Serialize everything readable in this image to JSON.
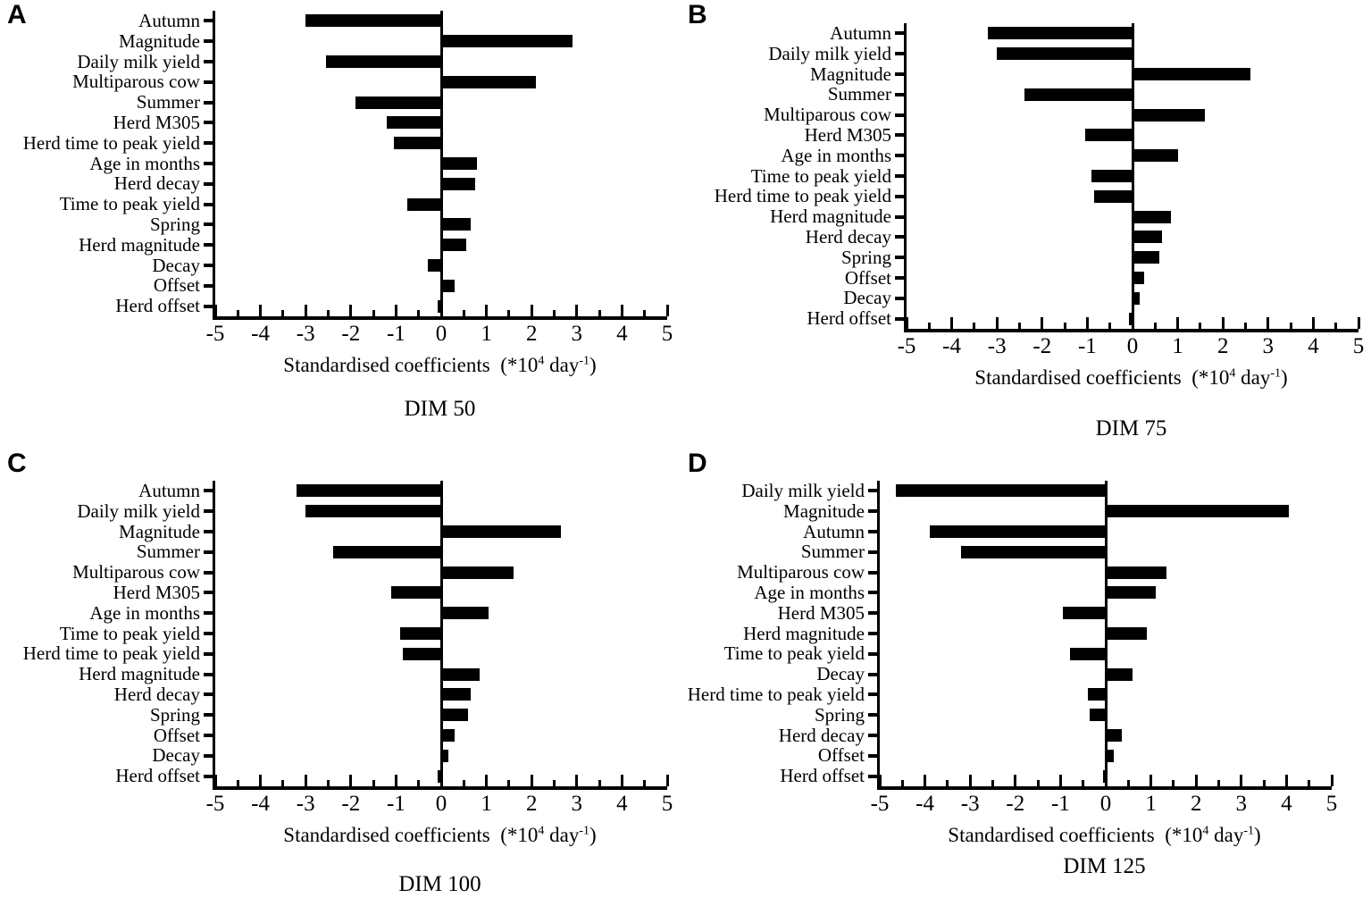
{
  "colors": {
    "bar": "#000000",
    "axis": "#000000",
    "background": "#ffffff"
  },
  "chart_data": [
    {
      "type": "bar",
      "orientation": "horizontal",
      "panel": "A",
      "title": "DIM 50",
      "xlabel": {
        "prefix": "Standardised coefficients  (*10",
        "sup1": "4",
        "mid": " day",
        "sup2": "-1",
        "suffix": ")"
      },
      "xlim": [
        -5,
        5
      ],
      "x_ticks": [
        -5,
        -4,
        -3,
        -2,
        -1,
        0,
        1,
        2,
        3,
        4,
        5
      ],
      "grid": false,
      "categories": [
        "Autumn",
        "Magnitude",
        "Daily milk yield",
        "Multiparous cow",
        "Summer",
        "Herd M305",
        "Herd time to peak yield",
        "Age in months",
        "Herd decay",
        "Time to peak yield",
        "Spring",
        "Herd magnitude",
        "Decay",
        "Offset",
        "Herd offset"
      ],
      "values": [
        -3.0,
        2.9,
        -2.55,
        2.1,
        -1.9,
        -1.2,
        -1.05,
        0.8,
        0.75,
        -0.75,
        0.65,
        0.55,
        -0.3,
        0.3,
        -0.07
      ]
    },
    {
      "type": "bar",
      "orientation": "horizontal",
      "panel": "B",
      "title": "DIM 75",
      "xlabel": {
        "prefix": "Standardised coefficients  (*10",
        "sup1": "4",
        "mid": " day",
        "sup2": "-1",
        "suffix": ")"
      },
      "xlim": [
        -5,
        5
      ],
      "x_ticks": [
        -5,
        -4,
        -3,
        -2,
        -1,
        0,
        1,
        2,
        3,
        4,
        5
      ],
      "grid": false,
      "categories": [
        "Autumn",
        "Daily milk yield",
        "Magnitude",
        "Summer",
        "Multiparous cow",
        "Herd M305",
        "Age in months",
        "Time to peak yield",
        "Herd time to peak yield",
        "Herd magnitude",
        "Herd decay",
        "Spring",
        "Offset",
        "Decay",
        "Herd offset"
      ],
      "values": [
        -3.2,
        -3.0,
        2.6,
        -2.4,
        1.6,
        -1.05,
        1.0,
        -0.9,
        -0.85,
        0.85,
        0.65,
        0.6,
        0.25,
        0.15,
        -0.08
      ]
    },
    {
      "type": "bar",
      "orientation": "horizontal",
      "panel": "C",
      "title": "DIM 100",
      "xlabel": {
        "prefix": "Standardised coefficients  (*10",
        "sup1": "4",
        "mid": " day",
        "sup2": "-1",
        "suffix": ")"
      },
      "xlim": [
        -5,
        5
      ],
      "x_ticks": [
        -5,
        -4,
        -3,
        -2,
        -1,
        0,
        1,
        2,
        3,
        4,
        5
      ],
      "grid": false,
      "categories": [
        "Autumn",
        "Daily milk yield",
        "Magnitude",
        "Summer",
        "Multiparous cow",
        "Herd M305",
        "Age in months",
        "Time to peak yield",
        "Herd time to peak yield",
        "Herd magnitude",
        "Herd decay",
        "Spring",
        "Offset",
        "Decay",
        "Herd offset"
      ],
      "values": [
        -3.2,
        -3.0,
        2.65,
        -2.4,
        1.6,
        -1.1,
        1.05,
        -0.9,
        -0.85,
        0.85,
        0.65,
        0.6,
        0.3,
        0.15,
        -0.07
      ]
    },
    {
      "type": "bar",
      "orientation": "horizontal",
      "panel": "D",
      "title": "DIM 125",
      "xlabel": {
        "prefix": "Standardised coefficients  (*10",
        "sup1": "4",
        "mid": " day",
        "sup2": "-1",
        "suffix": ")"
      },
      "xlim": [
        -5,
        5
      ],
      "x_ticks": [
        -5,
        -4,
        -3,
        -2,
        -1,
        0,
        1,
        2,
        3,
        4,
        5
      ],
      "grid": false,
      "categories": [
        "Daily milk yield",
        "Magnitude",
        "Autumn",
        "Summer",
        "Multiparous cow",
        "Age in months",
        "Herd M305",
        "Herd magnitude",
        "Time to peak yield",
        "Decay",
        "Herd time to peak yield",
        "Spring",
        "Herd decay",
        "Offset",
        "Herd offset"
      ],
      "values": [
        -4.65,
        4.05,
        -3.9,
        -3.2,
        1.35,
        1.1,
        -0.95,
        0.9,
        -0.8,
        0.6,
        -0.4,
        -0.35,
        0.35,
        0.18,
        -0.05
      ]
    }
  ]
}
